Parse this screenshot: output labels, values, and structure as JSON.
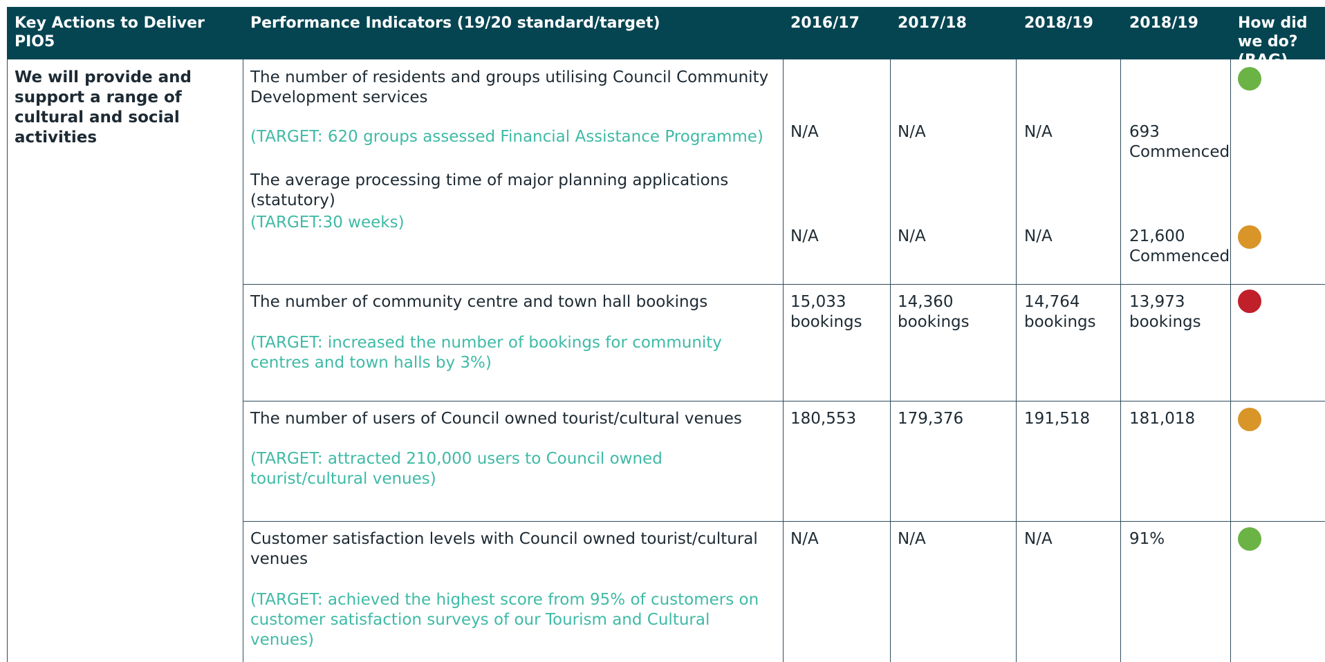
{
  "header": [
    "Key Actions to Deliver PIO5",
    "Performance Indicators (19/20 standard/target)",
    "2016/17",
    "2017/18",
    "2018/19",
    "2018/19",
    "How did we do? (RAG)"
  ],
  "key_action": "We will provide and support a range of cultural and social activities",
  "rows": [
    {
      "items": [
        {
          "indicator": "The number of residents and groups utilising Council Community Development services",
          "target": "(TARGET: 620 groups assessed Financial Assistance Programme)",
          "values": [
            "N/A",
            "N/A",
            "N/A",
            "693 Commenced"
          ],
          "rag": "#6ab344"
        },
        {
          "indicator": "The average processing time of major planning applications (statutory)",
          "target": "(TARGET:30 weeks)",
          "values": [
            "N/A",
            "N/A",
            "N/A",
            "21,600 Commenced"
          ],
          "rag": "#d99527"
        }
      ]
    },
    {
      "items": [
        {
          "indicator": "The number of community centre and town hall bookings",
          "target": "(TARGET: increased the number of bookings for community centres and town halls by 3%)",
          "values": [
            "15,033 bookings",
            "14,360 bookings",
            "14,764 bookings",
            "13,973 bookings"
          ],
          "rag": "#c0202a"
        }
      ]
    },
    {
      "items": [
        {
          "indicator": "The number of users of Council owned tourist/cultural venues",
          "target": "(TARGET: attracted 210,000 users to Council owned tourist/cultural venues)",
          "values": [
            "180,553",
            "179,376",
            "191,518",
            "181,018"
          ],
          "rag": "#d99527"
        }
      ]
    },
    {
      "items": [
        {
          "indicator": "Customer satisfaction levels with Council owned tourist/cultural venues",
          "target": "(TARGET: achieved the highest score from 95% of customers on customer satisfaction surveys of our Tourism and Cultural venues)",
          "values": [
            "N/A",
            "N/A",
            "N/A",
            "91%"
          ],
          "rag": "#6ab344"
        }
      ]
    }
  ]
}
